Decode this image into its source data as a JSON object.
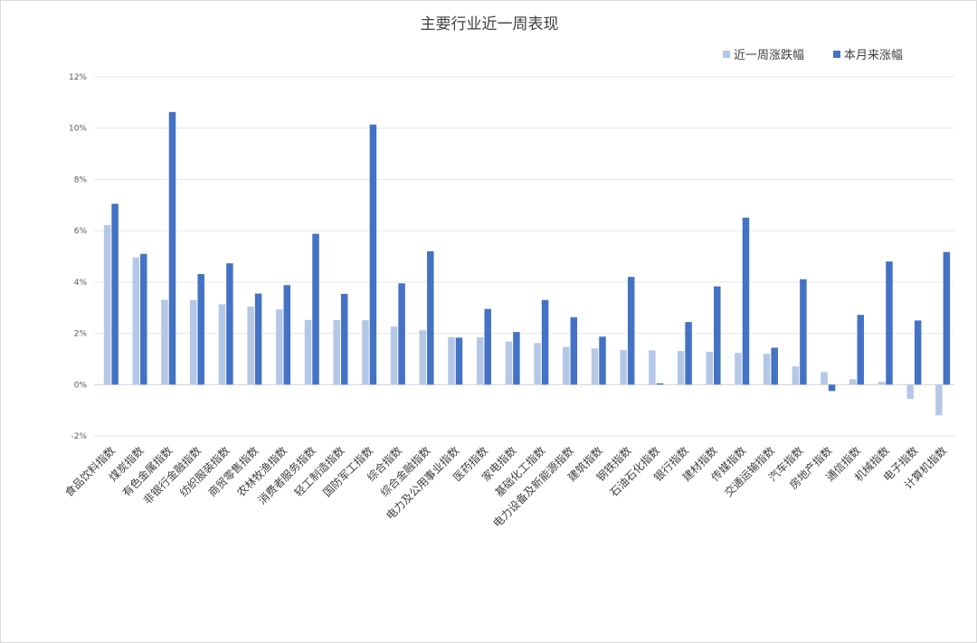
{
  "chart_data": {
    "type": "bar",
    "title": "主要行业近一周表现",
    "xlabel": "",
    "ylabel": "",
    "ylim": [
      -0.02,
      0.12
    ],
    "yticks": [
      -0.02,
      0,
      0.02,
      0.04,
      0.06,
      0.08,
      0.1,
      0.12
    ],
    "ytick_labels": [
      "-2%",
      "0%",
      "2%",
      "4%",
      "6%",
      "8%",
      "10%",
      "12%"
    ],
    "grid": true,
    "legend_position": "top-right",
    "categories": [
      "食品饮料指数",
      "煤炭指数",
      "有色金属指数",
      "非银行金融指数",
      "纺织服装指数",
      "商贸零售指数",
      "农林牧渔指数",
      "消费者服务指数",
      "轻工制造指数",
      "国防军工指数",
      "综合指数",
      "综合金融指数",
      "电力及公用事业指数",
      "医药指数",
      "家电指数",
      "基础化工指数",
      "电力设备及新能源指数",
      "建筑指数",
      "钢铁指数",
      "石油石化指数",
      "银行指数",
      "建材指数",
      "传媒指数",
      "交通运输指数",
      "汽车指数",
      "房地产指数",
      "通信指数",
      "机械指数",
      "电子指数",
      "计算机指数"
    ],
    "series": [
      {
        "name": "近一周涨跌幅",
        "color": "#b4c7e7",
        "values": [
          0.0622,
          0.0496,
          0.0331,
          0.0329,
          0.0313,
          0.0304,
          0.0293,
          0.0252,
          0.0252,
          0.0251,
          0.0226,
          0.0212,
          0.0185,
          0.0184,
          0.0168,
          0.0162,
          0.0147,
          0.0141,
          0.0135,
          0.0134,
          0.0131,
          0.0128,
          0.0124,
          0.012,
          0.0071,
          0.0049,
          0.0021,
          0.0011,
          -0.0056,
          -0.012
        ]
      },
      {
        "name": "本月来涨幅",
        "color": "#4472c4",
        "values": [
          0.0705,
          0.051,
          0.1063,
          0.0431,
          0.0473,
          0.0355,
          0.0388,
          0.0588,
          0.0354,
          0.1014,
          0.0395,
          0.052,
          0.0183,
          0.0295,
          0.0205,
          0.033,
          0.0263,
          0.0187,
          0.042,
          0.0005,
          0.0244,
          0.0383,
          0.0651,
          0.0144,
          0.0411,
          -0.0025,
          0.0272,
          0.048,
          0.025,
          0.0517
        ]
      }
    ]
  }
}
